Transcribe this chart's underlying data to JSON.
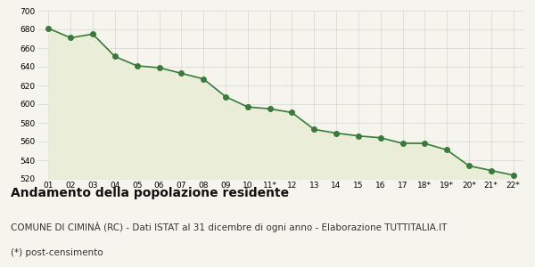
{
  "x_labels": [
    "01",
    "02",
    "03",
    "04",
    "05",
    "06",
    "07",
    "08",
    "09",
    "10",
    "11*",
    "12",
    "13",
    "14",
    "15",
    "16",
    "17",
    "18*",
    "19*",
    "20*",
    "21*",
    "22*"
  ],
  "values": [
    681,
    671,
    675,
    651,
    641,
    639,
    633,
    627,
    608,
    597,
    595,
    591,
    573,
    569,
    566,
    564,
    558,
    558,
    551,
    534,
    529,
    524
  ],
  "ylim": [
    520,
    700
  ],
  "yticks": [
    520,
    540,
    560,
    580,
    600,
    620,
    640,
    660,
    680,
    700
  ],
  "line_color": "#3a7a3a",
  "fill_color": "#eaedd8",
  "marker_color": "#3a7a3a",
  "bg_color": "#f5f5ee",
  "grid_color": "#cccccc",
  "title": "Andamento della popolazione residente",
  "subtitle": "COMUNE DI CIMINÀ (RC) - Dati ISTAT al 31 dicembre di ogni anno - Elaborazione TUTTITALIA.IT",
  "footnote": "(*) post-censimento",
  "title_fontsize": 10,
  "subtitle_fontsize": 7.5,
  "footnote_fontsize": 7.5
}
